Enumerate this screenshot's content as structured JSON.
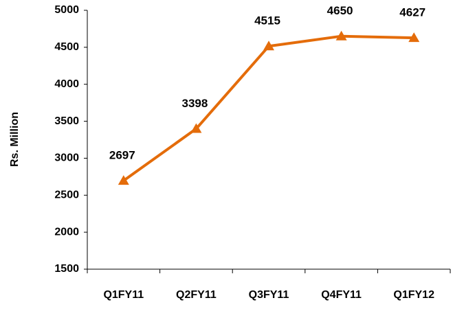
{
  "chart_data": {
    "type": "line",
    "y_label": "Rs. Million",
    "categories": [
      "Q1FY11",
      "Q2FY11",
      "Q3FY11",
      "Q4FY11",
      "Q1FY12"
    ],
    "series": [
      {
        "name": "Rs. Million",
        "color": "#e46c0a",
        "values": [
          2697,
          3398,
          4515,
          4650,
          4627
        ]
      }
    ],
    "ylim": [
      1500,
      5000
    ],
    "yticks": [
      1500,
      2000,
      2500,
      3000,
      3500,
      4000,
      4500,
      5000
    ],
    "grid": false
  }
}
